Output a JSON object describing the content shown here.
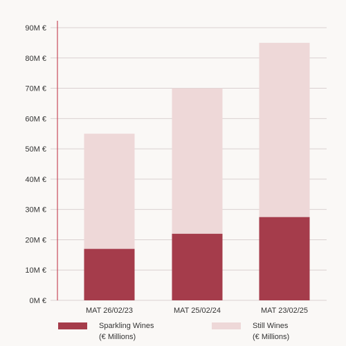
{
  "chart_data": {
    "type": "bar",
    "stacked": true,
    "categories": [
      "MAT 26/02/23",
      "MAT 25/02/24",
      "MAT 23/02/25"
    ],
    "y_ticks": [
      "0M €",
      "10M €",
      "20M €",
      "30M €",
      "40M €",
      "50M  €",
      "60M €",
      "70M €",
      "80M €",
      "90M €"
    ],
    "ylim": [
      0,
      90
    ],
    "grid": true,
    "legend_position": "bottom",
    "series": [
      {
        "name_line1": "Sparkling Wines",
        "name_line2": "(€ Millions)",
        "values": [
          17,
          22,
          27.5
        ],
        "color": "#a53c4b"
      },
      {
        "name_line1": "Still Wines",
        "name_line2": "(€ Millions)",
        "values": [
          38,
          48,
          57.5
        ],
        "color": "#eed8d8"
      }
    ],
    "axis_color": "#c74a5c",
    "grid_color": "#d9d0d0"
  }
}
